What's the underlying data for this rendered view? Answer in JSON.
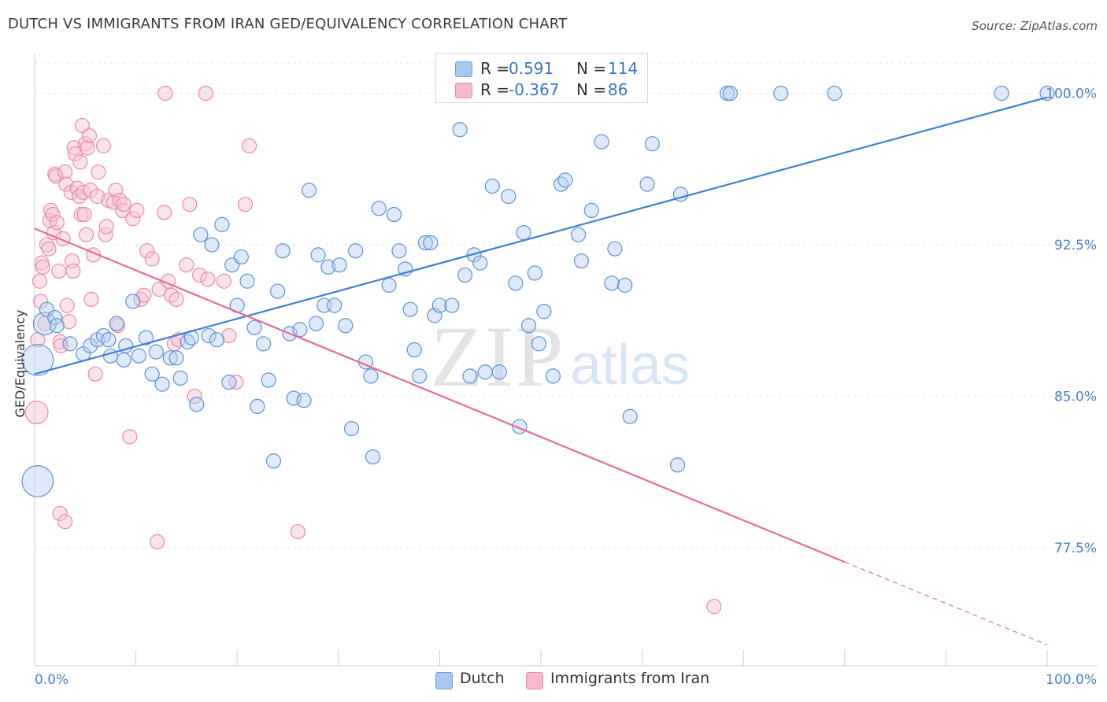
{
  "title": "DUTCH VS IMMIGRANTS FROM IRAN GED/EQUIVALENCY CORRELATION CHART",
  "source": "Source: ZipAtlas.com",
  "watermark": {
    "zip": "ZIP",
    "atlas": "atlas"
  },
  "legend": {
    "rows": [
      {
        "r_label": "R =",
        "r_value": "0.591",
        "n_label": "N =",
        "n_value": "114",
        "color": "#a9c8ef",
        "border": "#6fa0dc"
      },
      {
        "r_label": "R =",
        "r_value": "-0.367",
        "n_label": "N =",
        "n_value": "86",
        "color": "#f7b9cc",
        "border": "#ea8dab"
      }
    ]
  },
  "bottom_legend": [
    {
      "label": "Dutch",
      "color": "#a9c8ef",
      "border": "#6fa0dc"
    },
    {
      "label": "Immigrants from Iran",
      "color": "#f7b9cc",
      "border": "#ea8dab"
    }
  ],
  "chart_data": {
    "type": "scatter",
    "ylabel": "GED/Equivalency",
    "xlabel": "",
    "xlim": [
      0,
      100
    ],
    "ylim": [
      71.7,
      101.5
    ],
    "x_tick_labels": [
      {
        "value": 0,
        "label": "0.0%"
      },
      {
        "value": 100,
        "label": "100.0%"
      }
    ],
    "y_tick_labels": [
      {
        "value": 100.0,
        "label": "100.0%"
      },
      {
        "value": 92.5,
        "label": "92.5%"
      },
      {
        "value": 85.0,
        "label": "85.0%"
      },
      {
        "value": 77.5,
        "label": "77.5%"
      }
    ],
    "grid": true,
    "colors": {
      "dutch": "#3f7fd4",
      "iran": "#e66b98"
    },
    "series": [
      {
        "name": "Dutch",
        "trend": {
          "x": [
            0,
            100
          ],
          "y": [
            86.1,
            99.8
          ]
        },
        "points": [
          [
            0.3,
            86.8,
            22
          ],
          [
            0.3,
            80.8,
            22
          ],
          [
            1.0,
            88.6,
            16
          ],
          [
            1.2,
            89.3,
            10
          ],
          [
            2.0,
            88.9,
            10
          ],
          [
            2.2,
            88.5,
            10
          ],
          [
            3.5,
            87.6,
            10
          ],
          [
            4.8,
            87.1,
            10
          ],
          [
            5.5,
            87.5,
            10
          ],
          [
            6.2,
            87.8,
            10
          ],
          [
            6.8,
            88.0,
            10
          ],
          [
            7.3,
            87.8,
            10
          ],
          [
            7.5,
            87.0,
            10
          ],
          [
            8.1,
            88.6,
            10
          ],
          [
            8.8,
            86.8,
            10
          ],
          [
            9.0,
            87.5,
            10
          ],
          [
            9.7,
            89.7,
            10
          ],
          [
            10.3,
            87.0,
            10
          ],
          [
            11.0,
            87.9,
            10
          ],
          [
            11.6,
            86.1,
            10
          ],
          [
            12.0,
            87.2,
            10
          ],
          [
            12.6,
            85.6,
            10
          ],
          [
            13.4,
            86.9,
            10
          ],
          [
            14.0,
            86.9,
            10
          ],
          [
            14.4,
            85.9,
            10
          ],
          [
            15.1,
            87.7,
            10
          ],
          [
            15.5,
            87.9,
            10
          ],
          [
            16.0,
            84.6,
            10
          ],
          [
            16.4,
            93.0,
            10
          ],
          [
            17.2,
            88.0,
            10
          ],
          [
            17.5,
            92.5,
            10
          ],
          [
            18.0,
            87.8,
            10
          ],
          [
            18.5,
            93.5,
            10
          ],
          [
            19.2,
            85.7,
            10
          ],
          [
            19.5,
            91.5,
            10
          ],
          [
            20.0,
            89.5,
            10
          ],
          [
            20.4,
            91.9,
            10
          ],
          [
            21.0,
            90.7,
            10
          ],
          [
            21.7,
            88.4,
            10
          ],
          [
            22.0,
            84.5,
            10
          ],
          [
            22.6,
            87.6,
            10
          ],
          [
            23.1,
            85.8,
            10
          ],
          [
            23.6,
            81.8,
            10
          ],
          [
            24.0,
            90.2,
            10
          ],
          [
            24.5,
            92.2,
            10
          ],
          [
            25.2,
            88.1,
            10
          ],
          [
            25.6,
            84.9,
            10
          ],
          [
            26.2,
            88.3,
            10
          ],
          [
            26.6,
            84.8,
            10
          ],
          [
            27.1,
            95.2,
            10
          ],
          [
            27.8,
            88.6,
            10
          ],
          [
            28.0,
            92.0,
            10
          ],
          [
            28.6,
            89.5,
            10
          ],
          [
            29.0,
            91.4,
            10
          ],
          [
            29.6,
            89.5,
            10
          ],
          [
            30.1,
            91.5,
            10
          ],
          [
            30.7,
            88.5,
            10
          ],
          [
            31.3,
            83.4,
            10
          ],
          [
            31.7,
            92.2,
            10
          ],
          [
            32.7,
            86.7,
            10
          ],
          [
            33.2,
            86.0,
            10
          ],
          [
            33.4,
            82.0,
            10
          ],
          [
            34.0,
            94.3,
            10
          ],
          [
            35.0,
            90.5,
            10
          ],
          [
            35.5,
            94.0,
            10
          ],
          [
            36.0,
            92.2,
            10
          ],
          [
            36.6,
            91.3,
            10
          ],
          [
            37.1,
            89.3,
            10
          ],
          [
            37.5,
            87.3,
            10
          ],
          [
            38.0,
            86.0,
            10
          ],
          [
            38.6,
            92.6,
            10
          ],
          [
            39.1,
            92.6,
            10
          ],
          [
            39.5,
            89.0,
            10
          ],
          [
            40.0,
            89.5,
            10
          ],
          [
            41.2,
            89.5,
            10
          ],
          [
            42.0,
            98.2,
            10
          ],
          [
            42.5,
            91.0,
            10
          ],
          [
            43.0,
            86.0,
            10
          ],
          [
            43.4,
            92.0,
            10
          ],
          [
            44.0,
            91.6,
            10
          ],
          [
            44.5,
            86.2,
            10
          ],
          [
            45.2,
            95.4,
            10
          ],
          [
            45.9,
            86.2,
            10
          ],
          [
            46.8,
            94.9,
            10
          ],
          [
            47.5,
            90.6,
            10
          ],
          [
            47.9,
            83.5,
            10
          ],
          [
            48.3,
            93.1,
            10
          ],
          [
            48.8,
            88.5,
            10
          ],
          [
            49.4,
            91.1,
            10
          ],
          [
            49.8,
            87.6,
            10
          ],
          [
            50.3,
            89.2,
            10
          ],
          [
            51.2,
            86.0,
            10
          ],
          [
            52.0,
            95.5,
            10
          ],
          [
            52.4,
            95.7,
            10
          ],
          [
            53.0,
            100.0,
            10
          ],
          [
            53.7,
            93.0,
            10
          ],
          [
            54.0,
            91.7,
            10
          ],
          [
            55.0,
            94.2,
            10
          ],
          [
            55.5,
            100.0,
            10
          ],
          [
            56.0,
            97.6,
            10
          ],
          [
            57.0,
            90.6,
            10
          ],
          [
            57.3,
            92.3,
            10
          ],
          [
            58.3,
            90.5,
            10
          ],
          [
            58.8,
            84.0,
            10
          ],
          [
            59.0,
            100.0,
            10
          ],
          [
            60.5,
            95.5,
            10
          ],
          [
            61.0,
            97.5,
            10
          ],
          [
            63.8,
            95.0,
            10
          ],
          [
            63.5,
            81.6,
            10
          ],
          [
            68.4,
            100.0,
            10
          ],
          [
            68.7,
            100.0,
            10
          ],
          [
            73.7,
            100.0,
            10
          ],
          [
            79.0,
            100.0,
            10
          ],
          [
            95.5,
            100.0,
            10
          ],
          [
            100.0,
            100.0,
            10
          ]
        ]
      },
      {
        "name": "Immigrants from Iran",
        "trend": {
          "x": [
            0,
            80
          ],
          "y": [
            93.3,
            76.8
          ]
        },
        "trend_dashed": {
          "x": [
            80,
            100
          ],
          "y": [
            76.8,
            72.7
          ]
        },
        "points": [
          [
            0.2,
            84.2,
            16
          ],
          [
            0.3,
            87.8,
            10
          ],
          [
            0.5,
            90.7,
            10
          ],
          [
            0.6,
            89.7,
            10
          ],
          [
            0.7,
            91.6,
            10
          ],
          [
            0.8,
            91.4,
            10
          ],
          [
            1.0,
            88.6,
            10
          ],
          [
            1.2,
            92.5,
            10
          ],
          [
            1.4,
            92.3,
            10
          ],
          [
            1.5,
            93.7,
            10
          ],
          [
            1.6,
            94.2,
            10
          ],
          [
            1.8,
            94.0,
            10
          ],
          [
            1.9,
            93.1,
            10
          ],
          [
            2.0,
            96.0,
            10
          ],
          [
            2.1,
            95.9,
            10
          ],
          [
            2.2,
            93.6,
            10
          ],
          [
            2.4,
            91.2,
            10
          ],
          [
            2.5,
            87.7,
            10
          ],
          [
            2.6,
            87.5,
            10
          ],
          [
            2.8,
            92.8,
            10
          ],
          [
            3.0,
            96.1,
            10
          ],
          [
            3.1,
            95.5,
            10
          ],
          [
            3.2,
            89.5,
            10
          ],
          [
            3.4,
            88.7,
            10
          ],
          [
            3.6,
            95.1,
            10
          ],
          [
            3.7,
            91.7,
            10
          ],
          [
            3.8,
            91.2,
            10
          ],
          [
            3.9,
            97.3,
            10
          ],
          [
            4.0,
            97.0,
            10
          ],
          [
            4.2,
            95.3,
            10
          ],
          [
            4.4,
            94.9,
            10
          ],
          [
            4.5,
            96.6,
            10
          ],
          [
            4.6,
            94.0,
            10
          ],
          [
            4.7,
            98.4,
            10
          ],
          [
            4.8,
            95.1,
            10
          ],
          [
            4.9,
            94.0,
            10
          ],
          [
            5.0,
            97.5,
            10
          ],
          [
            5.1,
            93.0,
            10
          ],
          [
            5.2,
            97.3,
            10
          ],
          [
            5.4,
            97.9,
            10
          ],
          [
            5.5,
            95.2,
            10
          ],
          [
            5.6,
            89.8,
            10
          ],
          [
            5.8,
            92.0,
            10
          ],
          [
            6.0,
            86.1,
            10
          ],
          [
            6.2,
            94.9,
            10
          ],
          [
            6.3,
            96.1,
            10
          ],
          [
            6.8,
            97.4,
            10
          ],
          [
            7.0,
            93.0,
            10
          ],
          [
            7.1,
            93.4,
            10
          ],
          [
            7.3,
            94.7,
            10
          ],
          [
            7.8,
            94.6,
            10
          ],
          [
            8.0,
            95.2,
            10
          ],
          [
            8.2,
            88.5,
            10
          ],
          [
            8.4,
            94.7,
            10
          ],
          [
            8.7,
            94.2,
            10
          ],
          [
            8.8,
            94.5,
            10
          ],
          [
            9.4,
            83.0,
            10
          ],
          [
            9.7,
            93.8,
            10
          ],
          [
            10.1,
            94.2,
            10
          ],
          [
            10.5,
            89.8,
            10
          ],
          [
            10.8,
            90.0,
            10
          ],
          [
            11.1,
            92.2,
            10
          ],
          [
            11.6,
            91.8,
            10
          ],
          [
            12.1,
            77.8,
            10
          ],
          [
            12.3,
            90.3,
            10
          ],
          [
            12.8,
            94.1,
            10
          ],
          [
            12.9,
            100.0,
            10
          ],
          [
            13.2,
            90.7,
            10
          ],
          [
            13.5,
            90.0,
            10
          ],
          [
            13.8,
            87.6,
            10
          ],
          [
            14.0,
            89.8,
            10
          ],
          [
            14.2,
            87.8,
            10
          ],
          [
            15.0,
            91.5,
            10
          ],
          [
            15.3,
            94.5,
            10
          ],
          [
            15.8,
            85.0,
            10
          ],
          [
            16.3,
            91.0,
            10
          ],
          [
            16.9,
            100.0,
            10
          ],
          [
            17.1,
            90.8,
            10
          ],
          [
            18.7,
            90.7,
            10
          ],
          [
            19.2,
            88.0,
            10
          ],
          [
            19.9,
            85.7,
            10
          ],
          [
            20.8,
            94.5,
            10
          ],
          [
            21.2,
            97.4,
            10
          ],
          [
            26.0,
            78.3,
            10
          ],
          [
            2.5,
            79.2,
            10
          ],
          [
            3.0,
            78.8,
            10
          ],
          [
            67.1,
            74.6,
            10
          ]
        ]
      }
    ]
  }
}
